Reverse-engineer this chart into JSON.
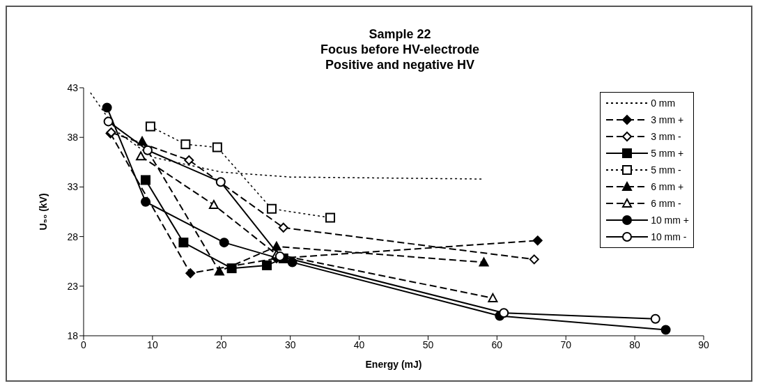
{
  "chart_data": {
    "type": "line",
    "title": "Sample 22\nFocus before HV-electrode\nPositive and negative HV",
    "xlabel": "Energy (mJ)",
    "ylabel": "U₅₀ (kV)",
    "xlim": [
      0,
      90
    ],
    "xticks": [
      0,
      10,
      20,
      30,
      40,
      50,
      60,
      70,
      80,
      90
    ],
    "ylim": [
      18,
      43
    ],
    "yticks": [
      18,
      23,
      28,
      33,
      38,
      43
    ],
    "grid": false,
    "legend": "top right",
    "series": [
      {
        "name": "0 mm",
        "color": "#000000",
        "marker": "none",
        "line_style": "dotted",
        "x": [
          1,
          5,
          10,
          20,
          30,
          58
        ],
        "values": [
          42.5,
          38.5,
          36,
          34.5,
          34,
          33.8
        ]
      },
      {
        "name": "3 mm +",
        "color": "#000000",
        "colors": [
          "#000000",
          "#000000",
          "#000000",
          "#000000"
        ],
        "marker": "diamond",
        "line_style": "dashed",
        "x": [
          3.9,
          15.5,
          28,
          65.9
        ],
        "values": [
          38.4,
          24.3,
          25.8,
          27.6
        ]
      },
      {
        "name": "3 mm -",
        "color": "#000000",
        "colors": [
          "#ffffff",
          "#ffffff",
          "#ffffff",
          "#ffffff"
        ],
        "marker": "diamond",
        "line_style": "dashed",
        "x": [
          4,
          15.3,
          29,
          65.4
        ],
        "values": [
          38.5,
          35.7,
          28.9,
          25.7
        ]
      },
      {
        "name": "5 mm +",
        "color": "#000000",
        "colors": [
          "#000000",
          "#000000",
          "#000000",
          "#000000",
          "#000000"
        ],
        "marker": "square",
        "line_style": "solid",
        "x": [
          9,
          14.5,
          21.5,
          26.6,
          29
        ],
        "values": [
          33.7,
          27.4,
          24.8,
          25.1,
          25.8
        ]
      },
      {
        "name": "5 mm -",
        "color": "#000000",
        "colors": [
          "#ffffff",
          "#ffffff",
          "#ffffff",
          "#ffffff",
          "#ffffff"
        ],
        "marker": "square",
        "line_style": "dotted",
        "x": [
          9.7,
          14.8,
          19.4,
          27.3,
          35.8
        ],
        "values": [
          39.1,
          37.3,
          37,
          30.8,
          29.9
        ]
      },
      {
        "name": "6 mm +",
        "color": "#000000",
        "colors": [
          "#000000",
          "#000000",
          "#000000",
          "#000000"
        ],
        "marker": "triangle",
        "line_style": "dashed",
        "x": [
          8.5,
          19.7,
          28,
          58.1
        ],
        "values": [
          37.6,
          24.5,
          27,
          25.4
        ]
      },
      {
        "name": "6 mm -",
        "color": "#000000",
        "colors": [
          "#ffffff",
          "#ffffff",
          "#ffffff",
          "#ffffff"
        ],
        "marker": "triangle",
        "line_style": "dashed",
        "x": [
          8.3,
          18.9,
          28,
          59.4
        ],
        "values": [
          36.1,
          31.2,
          26.2,
          21.8
        ]
      },
      {
        "name": "10 mm +",
        "color": "#000000",
        "colors": [
          "#000000",
          "#000000",
          "#000000",
          "#000000",
          "#000000",
          "#000000"
        ],
        "marker": "circle",
        "line_style": "solid",
        "x": [
          3.4,
          9,
          20.4,
          30.3,
          60.4,
          84.5
        ],
        "values": [
          41,
          31.5,
          27.4,
          25.4,
          20,
          18.6
        ]
      },
      {
        "name": "10 mm -",
        "color": "#000000",
        "colors": [
          "#ffffff",
          "#ffffff",
          "#ffffff",
          "#ffffff",
          "#ffffff",
          "#ffffff"
        ],
        "marker": "circle",
        "line_style": "solid",
        "x": [
          3.6,
          9.3,
          19.9,
          28.5,
          61,
          83
        ],
        "values": [
          39.6,
          36.7,
          33.5,
          26,
          20.3,
          19.7
        ]
      }
    ]
  }
}
